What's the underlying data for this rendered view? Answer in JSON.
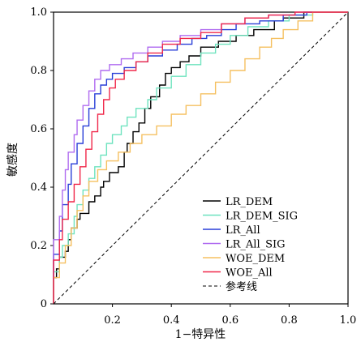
{
  "chart_data": {
    "type": "line",
    "xlabel": "1−特异性",
    "ylabel": "敏感度",
    "xlim": [
      0,
      1
    ],
    "ylim": [
      0,
      1
    ],
    "x_ticks": [
      "0.2",
      "0.4",
      "0.6",
      "0.8",
      "1.0"
    ],
    "y_ticks": [
      "0",
      "0.2",
      "0.4",
      "0.6",
      "0.8",
      "1.0"
    ],
    "grid": false,
    "legend_position": "bottom-right",
    "series": [
      {
        "name": "LR_DEM",
        "color": "#000000",
        "dash": "",
        "points": [
          [
            0,
            0
          ],
          [
            0,
            0.06
          ],
          [
            0.01,
            0.09
          ],
          [
            0.02,
            0.12
          ],
          [
            0.04,
            0.16
          ],
          [
            0.05,
            0.18
          ],
          [
            0.06,
            0.22
          ],
          [
            0.08,
            0.26
          ],
          [
            0.09,
            0.29
          ],
          [
            0.12,
            0.31
          ],
          [
            0.14,
            0.35
          ],
          [
            0.16,
            0.37
          ],
          [
            0.17,
            0.4
          ],
          [
            0.19,
            0.42
          ],
          [
            0.22,
            0.45
          ],
          [
            0.24,
            0.47
          ],
          [
            0.25,
            0.52
          ],
          [
            0.27,
            0.55
          ],
          [
            0.29,
            0.59
          ],
          [
            0.31,
            0.62
          ],
          [
            0.33,
            0.67
          ],
          [
            0.36,
            0.71
          ],
          [
            0.38,
            0.75
          ],
          [
            0.4,
            0.79
          ],
          [
            0.43,
            0.81
          ],
          [
            0.46,
            0.83
          ],
          [
            0.5,
            0.85
          ],
          [
            0.56,
            0.88
          ],
          [
            0.62,
            0.9
          ],
          [
            0.68,
            0.92
          ],
          [
            0.75,
            0.94
          ],
          [
            0.78,
            0.97
          ],
          [
            0.85,
            0.98
          ],
          [
            0.91,
            1.0
          ],
          [
            1.0,
            1.0
          ]
        ]
      },
      {
        "name": "LR_DEM_SIG",
        "color": "#6fe3bf",
        "dash": "",
        "points": [
          [
            0,
            0
          ],
          [
            0,
            0.07
          ],
          [
            0.02,
            0.11
          ],
          [
            0.03,
            0.16
          ],
          [
            0.05,
            0.2
          ],
          [
            0.07,
            0.24
          ],
          [
            0.08,
            0.3
          ],
          [
            0.1,
            0.34
          ],
          [
            0.12,
            0.39
          ],
          [
            0.14,
            0.43
          ],
          [
            0.16,
            0.47
          ],
          [
            0.18,
            0.51
          ],
          [
            0.2,
            0.55
          ],
          [
            0.23,
            0.58
          ],
          [
            0.25,
            0.61
          ],
          [
            0.28,
            0.64
          ],
          [
            0.32,
            0.67
          ],
          [
            0.35,
            0.7
          ],
          [
            0.4,
            0.74
          ],
          [
            0.45,
            0.78
          ],
          [
            0.5,
            0.82
          ],
          [
            0.55,
            0.86
          ],
          [
            0.6,
            0.89
          ],
          [
            0.66,
            0.92
          ],
          [
            0.73,
            0.95
          ],
          [
            0.8,
            0.97
          ],
          [
            0.88,
            0.99
          ],
          [
            0.93,
            1.0
          ],
          [
            1.0,
            1.0
          ]
        ]
      },
      {
        "name": "LR_All",
        "color": "#2a3fd8",
        "dash": "",
        "points": [
          [
            0,
            0
          ],
          [
            0,
            0.1
          ],
          [
            0.02,
            0.17
          ],
          [
            0.03,
            0.25
          ],
          [
            0.05,
            0.34
          ],
          [
            0.06,
            0.41
          ],
          [
            0.08,
            0.48
          ],
          [
            0.1,
            0.55
          ],
          [
            0.12,
            0.61
          ],
          [
            0.14,
            0.67
          ],
          [
            0.16,
            0.72
          ],
          [
            0.18,
            0.75
          ],
          [
            0.2,
            0.77
          ],
          [
            0.24,
            0.79
          ],
          [
            0.28,
            0.81
          ],
          [
            0.32,
            0.83
          ],
          [
            0.37,
            0.85
          ],
          [
            0.42,
            0.87
          ],
          [
            0.47,
            0.89
          ],
          [
            0.52,
            0.91
          ],
          [
            0.57,
            0.92
          ],
          [
            0.62,
            0.94
          ],
          [
            0.7,
            0.96
          ],
          [
            0.78,
            0.97
          ],
          [
            0.86,
            0.99
          ],
          [
            0.93,
            1.0
          ],
          [
            1.0,
            1.0
          ]
        ]
      },
      {
        "name": "LR_All_SIG",
        "color": "#b06cf0",
        "dash": "",
        "points": [
          [
            0,
            0
          ],
          [
            0,
            0.13
          ],
          [
            0.02,
            0.22
          ],
          [
            0.03,
            0.3
          ],
          [
            0.04,
            0.39
          ],
          [
            0.05,
            0.46
          ],
          [
            0.07,
            0.52
          ],
          [
            0.08,
            0.58
          ],
          [
            0.1,
            0.63
          ],
          [
            0.12,
            0.68
          ],
          [
            0.14,
            0.73
          ],
          [
            0.16,
            0.77
          ],
          [
            0.19,
            0.8
          ],
          [
            0.23,
            0.82
          ],
          [
            0.27,
            0.84
          ],
          [
            0.32,
            0.86
          ],
          [
            0.37,
            0.88
          ],
          [
            0.43,
            0.9
          ],
          [
            0.5,
            0.92
          ],
          [
            0.57,
            0.94
          ],
          [
            0.65,
            0.96
          ],
          [
            0.73,
            0.98
          ],
          [
            0.82,
            0.99
          ],
          [
            0.9,
            1.0
          ],
          [
            1.0,
            1.0
          ]
        ]
      },
      {
        "name": "WOE_DEM",
        "color": "#f5c060",
        "dash": "",
        "points": [
          [
            0,
            0
          ],
          [
            0,
            0.05
          ],
          [
            0.02,
            0.09
          ],
          [
            0.04,
            0.14
          ],
          [
            0.06,
            0.2
          ],
          [
            0.08,
            0.26
          ],
          [
            0.1,
            0.32
          ],
          [
            0.12,
            0.37
          ],
          [
            0.15,
            0.42
          ],
          [
            0.18,
            0.46
          ],
          [
            0.22,
            0.49
          ],
          [
            0.26,
            0.52
          ],
          [
            0.3,
            0.55
          ],
          [
            0.35,
            0.58
          ],
          [
            0.4,
            0.61
          ],
          [
            0.45,
            0.65
          ],
          [
            0.5,
            0.68
          ],
          [
            0.55,
            0.72
          ],
          [
            0.6,
            0.76
          ],
          [
            0.65,
            0.8
          ],
          [
            0.7,
            0.84
          ],
          [
            0.74,
            0.88
          ],
          [
            0.78,
            0.91
          ],
          [
            0.83,
            0.94
          ],
          [
            0.88,
            0.97
          ],
          [
            0.93,
            1.0
          ],
          [
            1.0,
            1.0
          ]
        ]
      },
      {
        "name": "WOE_All",
        "color": "#f0284a",
        "dash": "",
        "points": [
          [
            0,
            0
          ],
          [
            0,
            0.09
          ],
          [
            0.02,
            0.15
          ],
          [
            0.03,
            0.22
          ],
          [
            0.05,
            0.29
          ],
          [
            0.07,
            0.35
          ],
          [
            0.09,
            0.41
          ],
          [
            0.11,
            0.47
          ],
          [
            0.13,
            0.53
          ],
          [
            0.15,
            0.59
          ],
          [
            0.17,
            0.65
          ],
          [
            0.19,
            0.7
          ],
          [
            0.21,
            0.74
          ],
          [
            0.24,
            0.77
          ],
          [
            0.28,
            0.8
          ],
          [
            0.32,
            0.83
          ],
          [
            0.37,
            0.86
          ],
          [
            0.43,
            0.89
          ],
          [
            0.5,
            0.91
          ],
          [
            0.57,
            0.93
          ],
          [
            0.65,
            0.96
          ],
          [
            0.73,
            0.98
          ],
          [
            0.82,
            0.99
          ],
          [
            0.9,
            1.0
          ],
          [
            1.0,
            1.0
          ]
        ]
      },
      {
        "name": "参考线",
        "color": "#000000",
        "dash": "4,3",
        "points": [
          [
            0,
            0
          ],
          [
            1,
            1
          ]
        ]
      }
    ]
  }
}
